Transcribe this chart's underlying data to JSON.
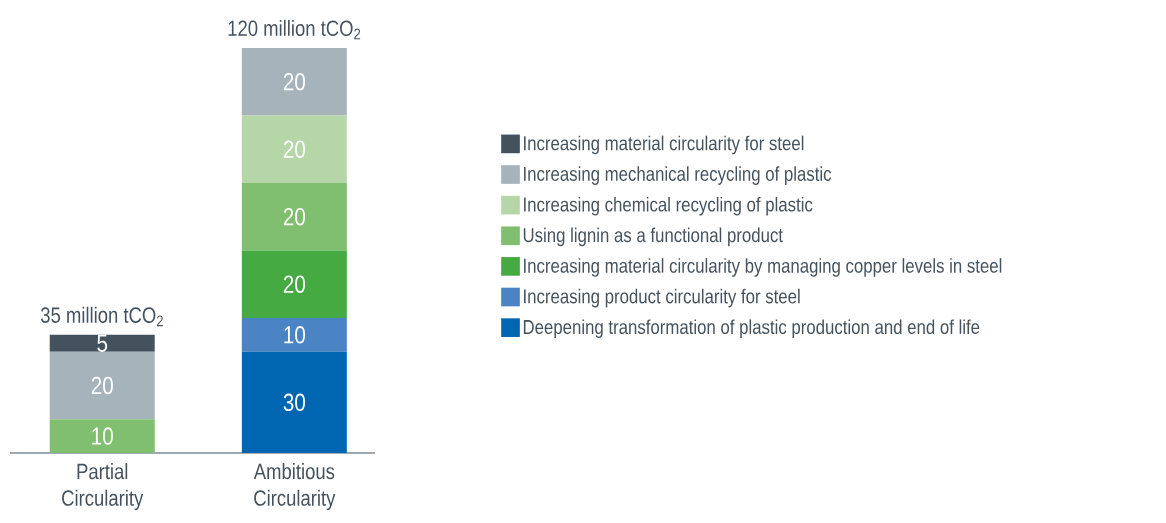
{
  "chart_data": {
    "type": "bar",
    "stacked": true,
    "data_labels": true,
    "legend": "right",
    "tick_labels": "x",
    "categories": [
      "Partial Circularity",
      "Ambitious Circularity"
    ],
    "series": [
      {
        "name": "Deepening transformation of plastic production and end of life",
        "color": "#0066b2",
        "values": [
          null,
          30
        ]
      },
      {
        "name": "Increasing product circularity for steel",
        "color": "#4a84c4",
        "values": [
          null,
          10
        ]
      },
      {
        "name": "Increasing material circularity by managing copper levels in steel",
        "color": "#45aa42",
        "values": [
          null,
          20
        ]
      },
      {
        "name": "Using lignin as a functional product",
        "color": "#80bf6f",
        "values": [
          10,
          20
        ]
      },
      {
        "name": "Increasing chemical recycling of plastic",
        "color": "#b5d7a8",
        "values": [
          null,
          20
        ]
      },
      {
        "name": "Increasing mechanical recycling of plastic",
        "color": "#a7b3bb",
        "values": [
          20,
          20
        ]
      },
      {
        "name": "Increasing material circularity for steel",
        "color": "#44525e",
        "values": [
          5,
          null
        ]
      }
    ],
    "totals": [
      "35 million tCO$_{2}$",
      "120 million tCO$_{2}$"
    ]
  }
}
